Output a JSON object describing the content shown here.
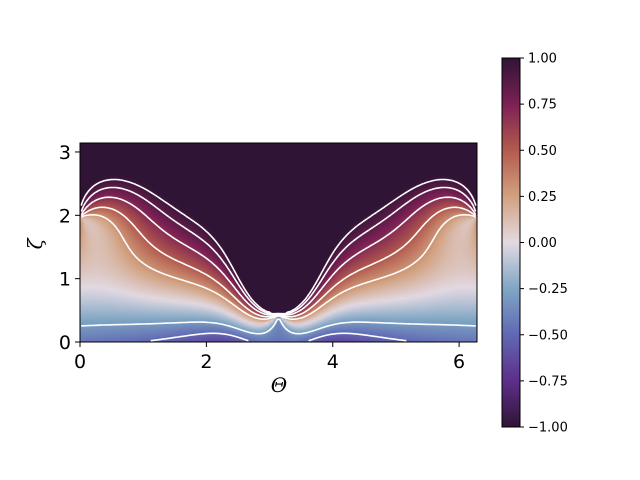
{
  "chart_data": {
    "type": "heatmap",
    "title": "",
    "xlabel": "Θ",
    "ylabel": "ζ",
    "xlim": [
      0,
      6.2832
    ],
    "ylim": [
      0,
      3.1416
    ],
    "xticks": [
      {
        "value": 0,
        "label": "0"
      },
      {
        "value": 2,
        "label": "2"
      },
      {
        "value": 4,
        "label": "4"
      },
      {
        "value": 6,
        "label": "6"
      }
    ],
    "yticks": [
      {
        "value": 0,
        "label": "0"
      },
      {
        "value": 1,
        "label": "1"
      },
      {
        "value": 2,
        "label": "2"
      },
      {
        "value": 3,
        "label": "3"
      }
    ],
    "colorbar": {
      "range": [
        -1.0,
        1.0
      ],
      "colormap": "twilight_shifted",
      "ticks": [
        {
          "value": 1.0,
          "label": "1.00"
        },
        {
          "value": 0.75,
          "label": "0.75"
        },
        {
          "value": 0.5,
          "label": "0.50"
        },
        {
          "value": 0.25,
          "label": "0.25"
        },
        {
          "value": 0.0,
          "label": "0.00"
        },
        {
          "value": -0.25,
          "label": "−0.25"
        },
        {
          "value": -0.5,
          "label": "−0.50"
        },
        {
          "value": -0.75,
          "label": "−0.75"
        },
        {
          "value": -1.0,
          "label": "−1.00"
        }
      ],
      "color_stops": [
        {
          "value": -1.0,
          "color": "#2f1436"
        },
        {
          "value": -0.75,
          "color": "#5e2f8a"
        },
        {
          "value": -0.5,
          "color": "#6068b4"
        },
        {
          "value": -0.25,
          "color": "#7fa6c4"
        },
        {
          "value": 0.0,
          "color": "#e2d9e2"
        },
        {
          "value": 0.25,
          "color": "#d2a17f"
        },
        {
          "value": 0.5,
          "color": "#b35a4e"
        },
        {
          "value": 0.75,
          "color": "#7c2154"
        },
        {
          "value": 1.0,
          "color": "#2f1436"
        }
      ]
    },
    "field": {
      "singular_points": [
        {
          "theta": 0.0,
          "zeta": 1.97
        },
        {
          "theta": 3.1416,
          "zeta": 0.42
        },
        {
          "theta": 6.2832,
          "zeta": 1.97
        }
      ],
      "contour_levels_solid": [
        0.3,
        0.5,
        0.7,
        0.85,
        0.95
      ],
      "contour_levels_dashed": [
        -0.3,
        -0.5
      ],
      "contour_color": "#ffffff"
    }
  }
}
